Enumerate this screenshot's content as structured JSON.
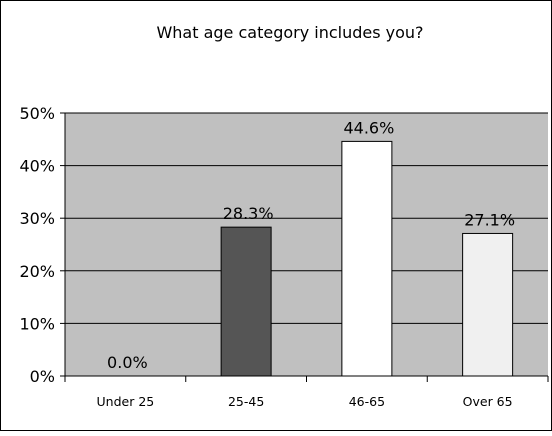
{
  "chart_data": {
    "type": "bar",
    "title": "What age category includes you?",
    "categories": [
      "Under 25",
      "25-45",
      "46-65",
      "Over 65"
    ],
    "values": [
      0.0,
      28.3,
      44.6,
      27.1
    ],
    "value_labels": [
      "0.0%",
      "28.3%",
      "44.6%",
      "27.1%"
    ],
    "ylim": [
      0,
      50
    ],
    "yticks": [
      0,
      10,
      20,
      30,
      40,
      50
    ],
    "ytick_labels": [
      "0%",
      "10%",
      "20%",
      "30%",
      "40%",
      "50%"
    ],
    "grid": true,
    "legend": "none",
    "colors": {
      "plot_background": "#c0c0c0",
      "bars": [
        "#c0c0c0",
        "#555555",
        "#ffffff",
        "#f0f0f0"
      ],
      "bar_border": "#000000",
      "gridline": "#000000"
    }
  }
}
